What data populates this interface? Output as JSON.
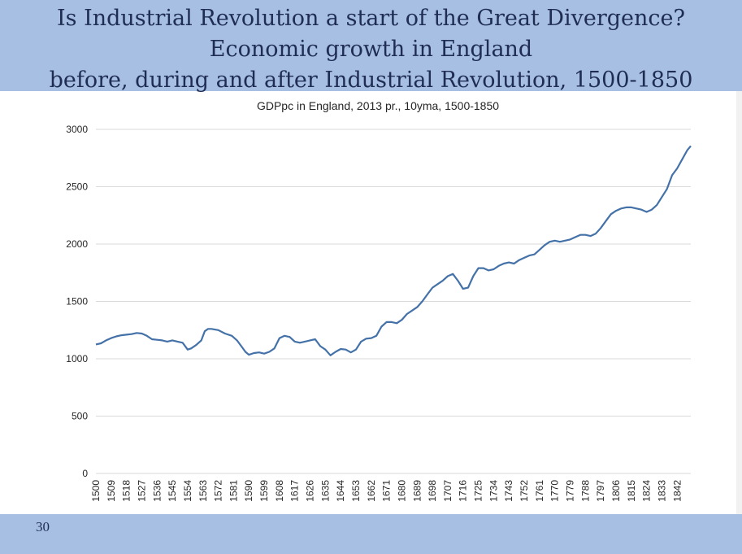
{
  "slide": {
    "title_lines": [
      "Is Industrial Revolution a start of the Great Divergence?",
      "Economic growth in England",
      "before, during and after Industrial Revolution, 1500-1850"
    ],
    "page_number": "30"
  },
  "chart_data": {
    "type": "line",
    "title": "GDPpc in England, 2013 pr., 10yma, 1500-1850",
    "xlabel": "",
    "ylabel": "",
    "ylim": [
      0,
      3000
    ],
    "yticks": [
      0,
      500,
      1000,
      1500,
      2000,
      2500,
      3000
    ],
    "xlim": [
      1500,
      1850
    ],
    "xticks": [
      1500,
      1509,
      1518,
      1527,
      1536,
      1545,
      1554,
      1563,
      1572,
      1581,
      1590,
      1599,
      1608,
      1617,
      1626,
      1635,
      1644,
      1653,
      1662,
      1671,
      1680,
      1689,
      1698,
      1707,
      1716,
      1725,
      1734,
      1743,
      1752,
      1761,
      1770,
      1779,
      1788,
      1797,
      1806,
      1815,
      1824,
      1833,
      1842
    ],
    "grid": true,
    "legend": "none",
    "colors": {
      "line": "#4472a8",
      "grid": "#d9d9d9"
    },
    "series": [
      {
        "x": [
          1500,
          1503,
          1506,
          1509,
          1512,
          1515,
          1518,
          1521,
          1524,
          1527,
          1530,
          1533,
          1536,
          1539,
          1542,
          1545,
          1548,
          1551,
          1554,
          1556,
          1559,
          1562,
          1564,
          1566,
          1568,
          1572,
          1576,
          1580,
          1583,
          1586,
          1588,
          1590,
          1593,
          1596,
          1599,
          1602,
          1605,
          1608,
          1611,
          1614,
          1617,
          1620,
          1623,
          1626,
          1629,
          1632,
          1635,
          1638,
          1641,
          1644,
          1647,
          1650,
          1653,
          1656,
          1659,
          1662,
          1665,
          1668,
          1671,
          1674,
          1677,
          1680,
          1683,
          1686,
          1689,
          1692,
          1695,
          1698,
          1701,
          1704,
          1707,
          1710,
          1713,
          1716,
          1719,
          1722,
          1725,
          1728,
          1731,
          1734,
          1737,
          1740,
          1743,
          1746,
          1749,
          1752,
          1755,
          1758,
          1761,
          1764,
          1767,
          1770,
          1773,
          1776,
          1779,
          1782,
          1785,
          1788,
          1791,
          1794,
          1797,
          1800,
          1803,
          1806,
          1809,
          1812,
          1815,
          1818,
          1821,
          1824,
          1827,
          1830,
          1833,
          1836,
          1839,
          1842,
          1845,
          1848,
          1850
        ],
        "values": [
          1125,
          1135,
          1160,
          1180,
          1195,
          1205,
          1210,
          1215,
          1225,
          1220,
          1200,
          1170,
          1165,
          1160,
          1150,
          1160,
          1150,
          1140,
          1080,
          1090,
          1120,
          1160,
          1240,
          1260,
          1260,
          1250,
          1220,
          1200,
          1160,
          1100,
          1060,
          1035,
          1050,
          1055,
          1045,
          1060,
          1090,
          1180,
          1200,
          1190,
          1150,
          1140,
          1150,
          1160,
          1170,
          1110,
          1080,
          1030,
          1060,
          1085,
          1080,
          1055,
          1080,
          1150,
          1175,
          1180,
          1200,
          1280,
          1320,
          1320,
          1310,
          1340,
          1390,
          1420,
          1450,
          1500,
          1560,
          1620,
          1650,
          1680,
          1720,
          1740,
          1680,
          1610,
          1620,
          1720,
          1790,
          1790,
          1770,
          1780,
          1810,
          1830,
          1840,
          1830,
          1860,
          1880,
          1900,
          1910,
          1950,
          1990,
          2020,
          2030,
          2020,
          2030,
          2040,
          2060,
          2080,
          2080,
          2070,
          2090,
          2140,
          2200,
          2260,
          2290,
          2310,
          2320,
          2320,
          2310,
          2300,
          2280,
          2300,
          2340,
          2410,
          2480,
          2600,
          2660,
          2740,
          2820,
          2855
        ]
      }
    ]
  }
}
